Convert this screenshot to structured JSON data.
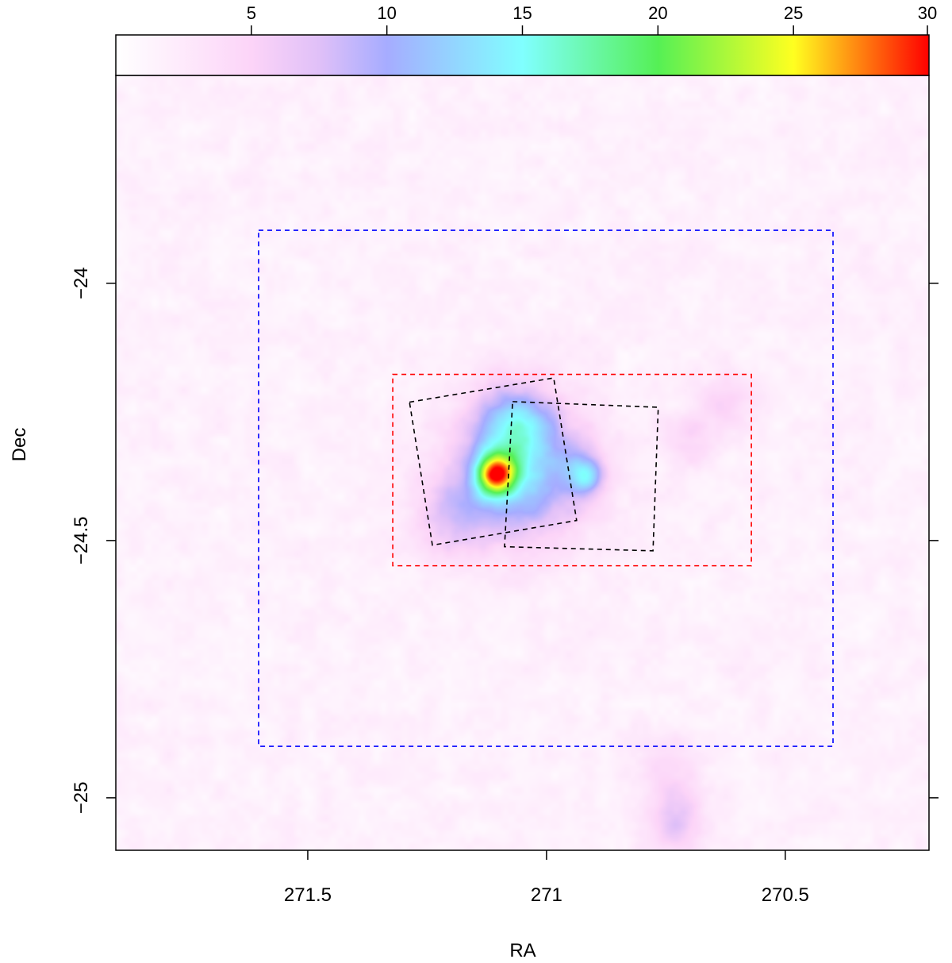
{
  "chart_data": {
    "type": "heatmap",
    "title": "",
    "xlabel": "RA",
    "ylabel": "Dec",
    "xlim": [
      271.902,
      270.199
    ],
    "ylim": [
      -25.102,
      -23.596
    ],
    "x_ticks": [
      271.5,
      271,
      270.5
    ],
    "x_tick_labels": [
      "271.5",
      "271",
      "270.5"
    ],
    "y_ticks": [
      -24,
      -24.5,
      -25
    ],
    "y_tick_labels": [
      "−24",
      "−24.5",
      "−25"
    ],
    "colorbar": {
      "range": [
        0,
        30
      ],
      "ticks": [
        5,
        10,
        15,
        20,
        25,
        30
      ],
      "tick_labels": [
        "5",
        "10",
        "15",
        "20",
        "25",
        "30"
      ],
      "placement": "top",
      "stops": [
        {
          "v": 0,
          "color": "#ffffff"
        },
        {
          "v": 5,
          "color": "#fcd4f8"
        },
        {
          "v": 7.5,
          "color": "#e0c0f8"
        },
        {
          "v": 10,
          "color": "#a6acff"
        },
        {
          "v": 15,
          "color": "#80ffff"
        },
        {
          "v": 20,
          "color": "#55f055"
        },
        {
          "v": 25,
          "color": "#ffff20"
        },
        {
          "v": 30,
          "color": "#ff0000"
        }
      ]
    },
    "sources": [
      {
        "ra": 271.106,
        "dec": -24.37,
        "amp": 20,
        "sigma": 0.028
      },
      {
        "ra": 271.05,
        "dec": -24.36,
        "amp": 11,
        "sigma": 0.095
      },
      {
        "ra": 271.07,
        "dec": -24.27,
        "amp": 7,
        "sigma": 0.05
      },
      {
        "ra": 270.919,
        "dec": -24.372,
        "amp": 9,
        "sigma": 0.028
      },
      {
        "ra": 271.2,
        "dec": -24.45,
        "amp": 5,
        "sigma": 0.06
      },
      {
        "ra": 270.7,
        "dec": -24.3,
        "amp": 3,
        "sigma": 0.04
      },
      {
        "ra": 270.62,
        "dec": -24.23,
        "amp": 3,
        "sigma": 0.04
      },
      {
        "ra": 270.73,
        "dec": -25.05,
        "amp": 5,
        "sigma": 0.04
      },
      {
        "ra": 270.75,
        "dec": -24.95,
        "amp": 3,
        "sigma": 0.05
      }
    ],
    "background_level": 1.5,
    "regions": [
      {
        "name": "blue-region",
        "color": "#0000ff",
        "points": [
          [
            271.603,
            -23.897
          ],
          [
            270.4,
            -23.897
          ],
          [
            270.4,
            -24.9
          ],
          [
            271.603,
            -24.9
          ]
        ]
      },
      {
        "name": "red-region",
        "color": "#ff0000",
        "points": [
          [
            271.322,
            -24.177
          ],
          [
            270.571,
            -24.177
          ],
          [
            270.571,
            -24.549
          ],
          [
            271.322,
            -24.549
          ]
        ]
      },
      {
        "name": "black-field-1",
        "color": "#000000",
        "points": [
          [
            271.287,
            -24.231
          ],
          [
            270.985,
            -24.184
          ],
          [
            270.937,
            -24.461
          ],
          [
            271.239,
            -24.509
          ]
        ]
      },
      {
        "name": "black-field-2",
        "color": "#000000",
        "points": [
          [
            271.071,
            -24.23
          ],
          [
            270.766,
            -24.241
          ],
          [
            270.777,
            -24.52
          ],
          [
            271.088,
            -24.512
          ]
        ]
      }
    ]
  }
}
